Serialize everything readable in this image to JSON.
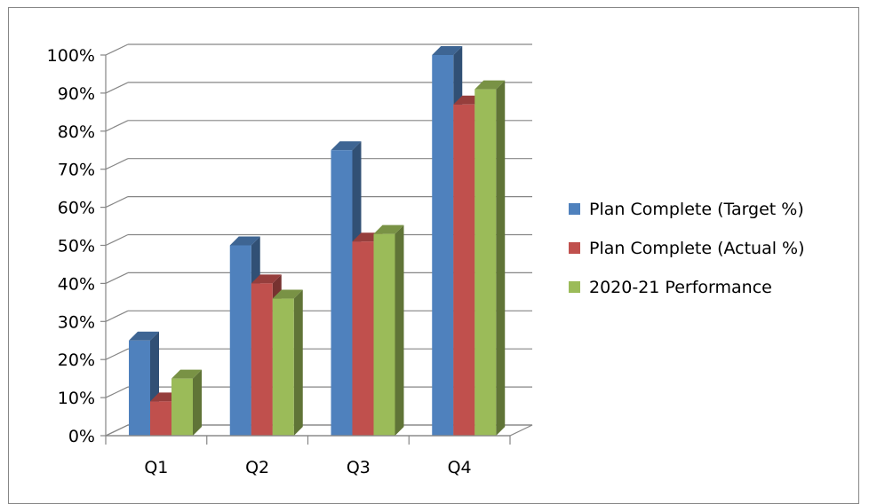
{
  "chart_data": {
    "type": "bar",
    "categories": [
      "Q1",
      "Q2",
      "Q3",
      "Q4"
    ],
    "series": [
      {
        "name": "Plan Complete (Target %)",
        "values": [
          25,
          50,
          75,
          100
        ],
        "color": "#4F81BD"
      },
      {
        "name": "Plan Complete (Actual %)",
        "values": [
          9,
          40,
          51,
          87
        ],
        "color": "#C0504D"
      },
      {
        "name": "2020-21 Performance",
        "values": [
          15,
          36,
          53,
          91
        ],
        "color": "#9BBB59"
      }
    ],
    "y_ticks": [
      "0%",
      "10%",
      "20%",
      "30%",
      "40%",
      "50%",
      "60%",
      "70%",
      "80%",
      "90%",
      "100%"
    ],
    "ylim": [
      0,
      100
    ],
    "title": "",
    "xlabel": "",
    "ylabel": "",
    "grid": true,
    "legend_position": "right",
    "style": "3d-clustered-column"
  }
}
